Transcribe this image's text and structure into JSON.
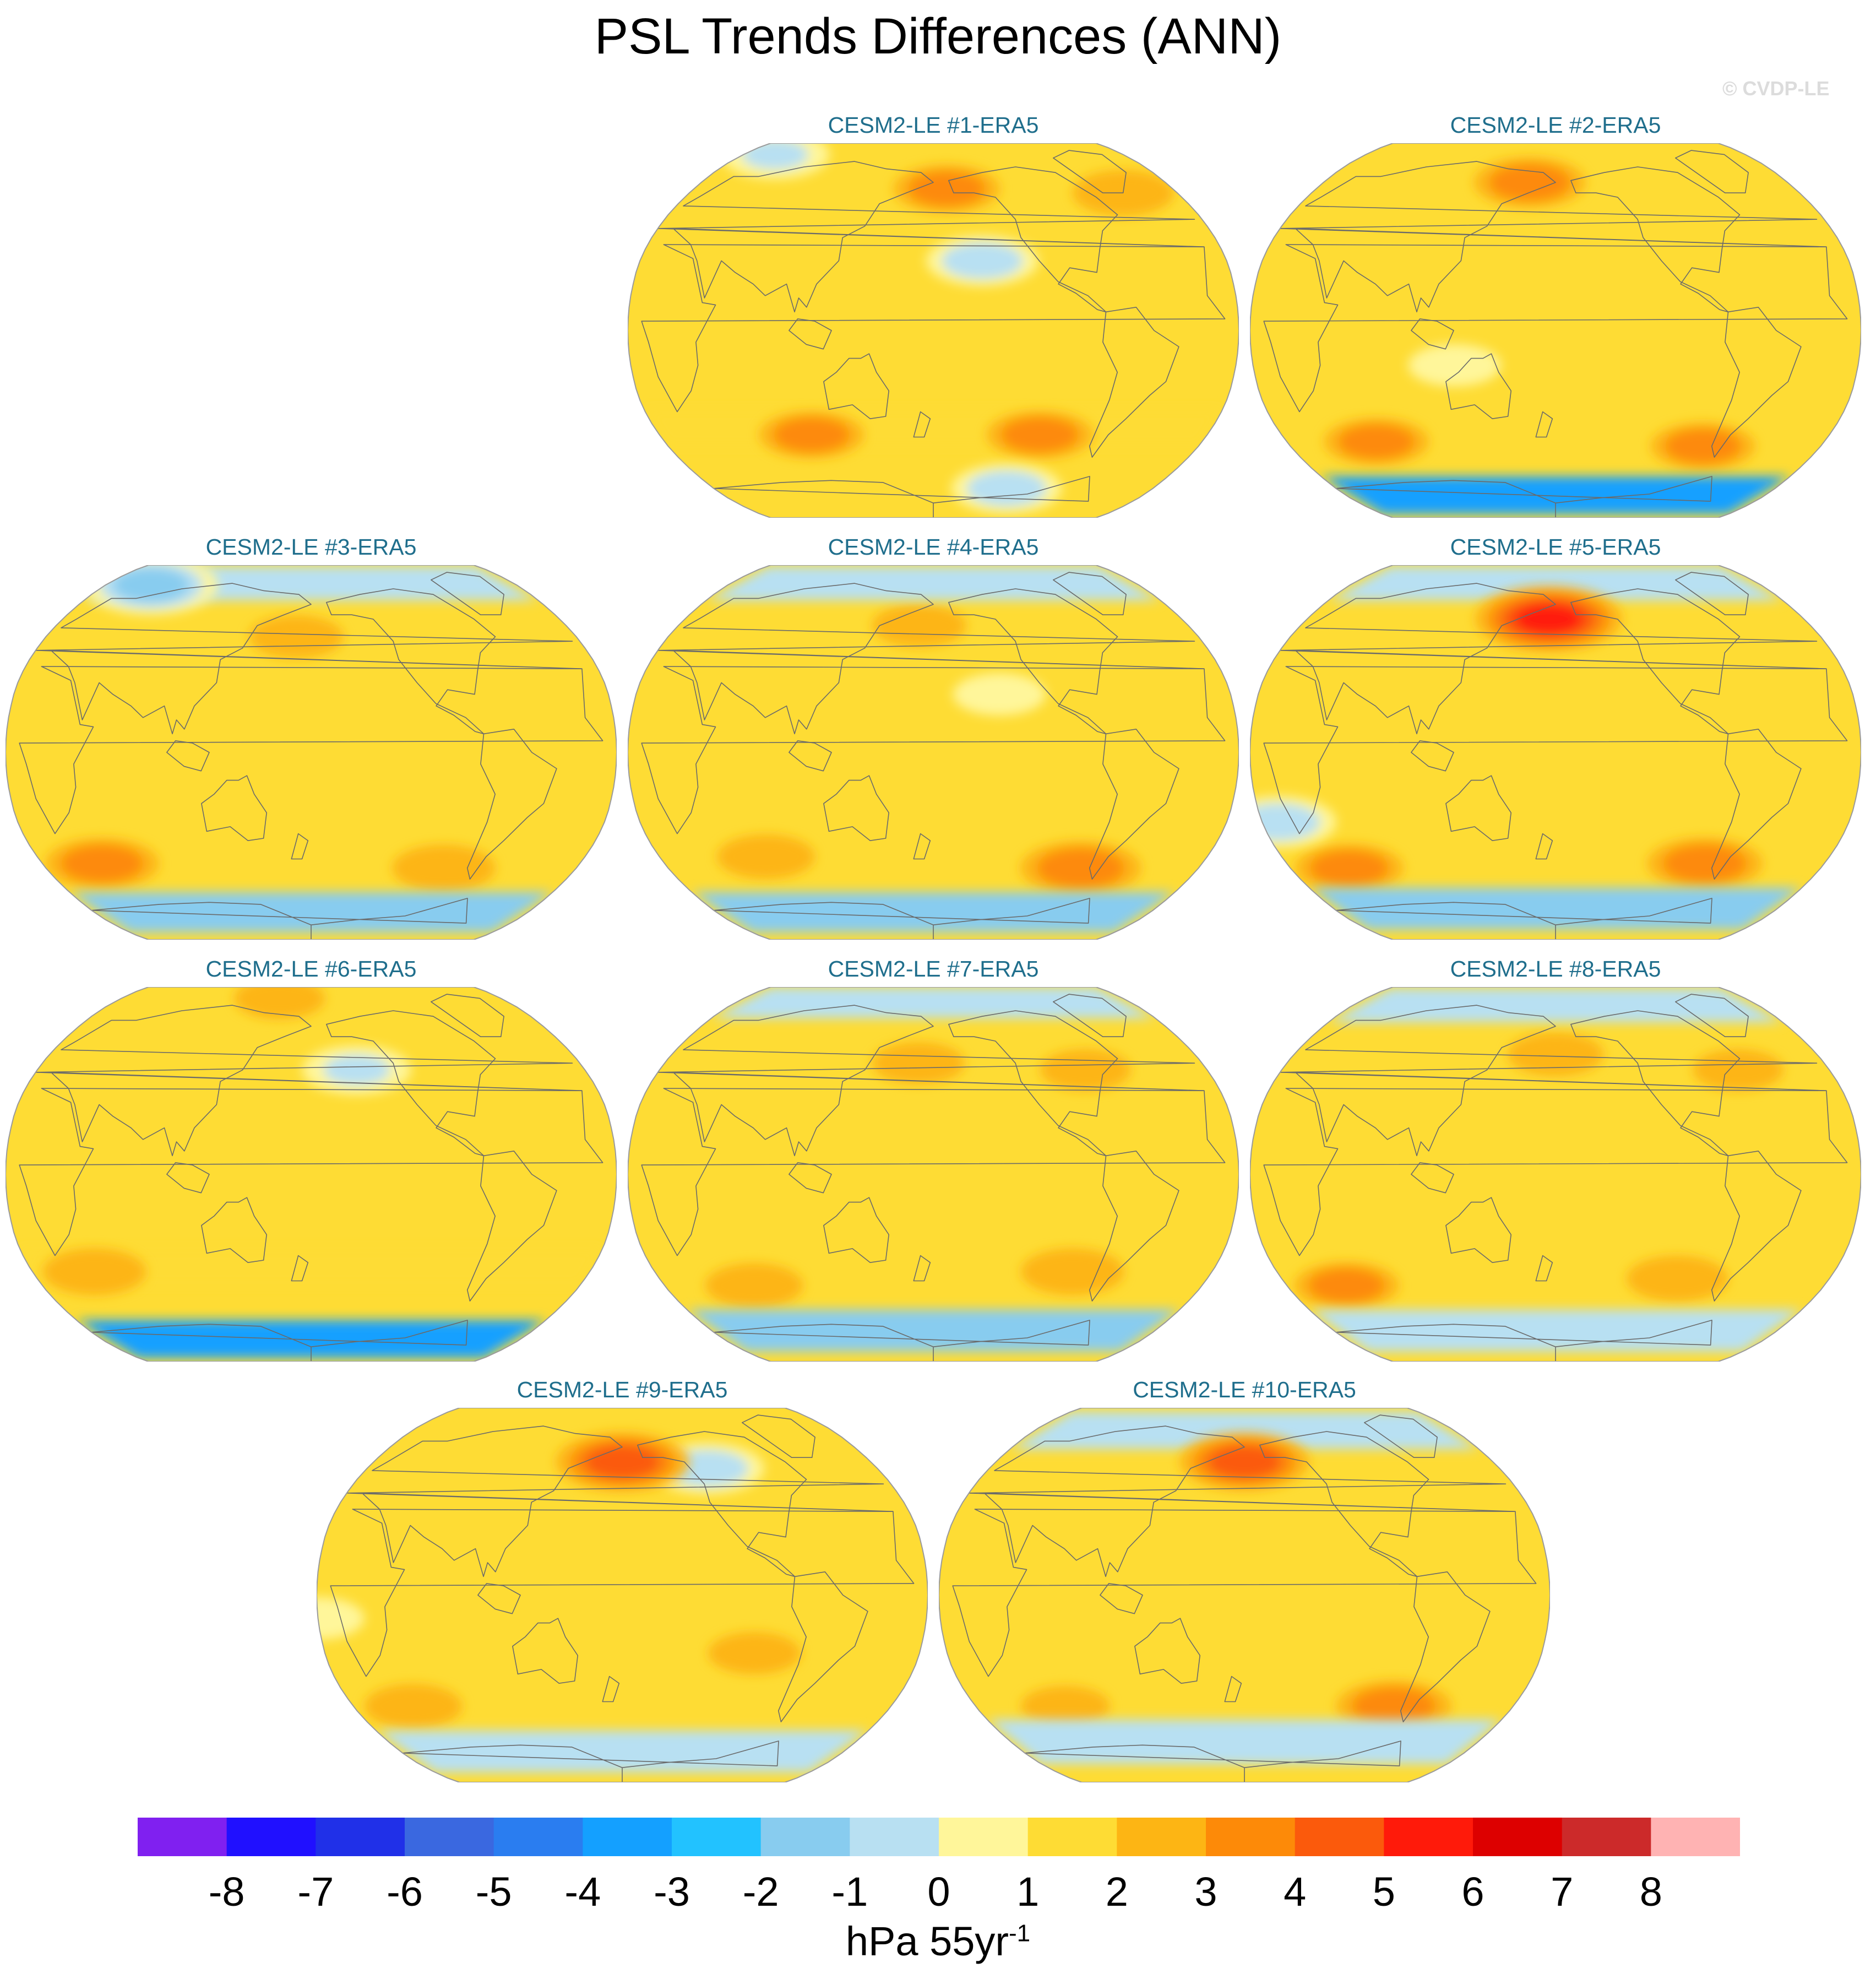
{
  "title": "PSL Trends Differences (ANN)",
  "watermark": "© CVDP-LE",
  "panels": [
    {
      "label": "CESM2-LE #1-ERA5",
      "features": [
        {
          "kind": "band",
          "lat": -42,
          "value": 1.6
        },
        {
          "kind": "blob",
          "lon": -110,
          "lat": -45,
          "value": 3.1
        },
        {
          "kind": "blob",
          "lon": 100,
          "lat": -45,
          "value": 3.0
        },
        {
          "kind": "blob",
          "lon": 190,
          "lat": 62,
          "value": 3.1
        },
        {
          "kind": "blob",
          "lon": -40,
          "lat": 60,
          "value": 2.8
        },
        {
          "kind": "blob",
          "lon": -150,
          "lat": 30,
          "value": -0.6
        },
        {
          "kind": "blob",
          "lon": -120,
          "lat": -70,
          "value": -0.5
        },
        {
          "kind": "blob",
          "lon": 30,
          "lat": 80,
          "value": -0.4
        }
      ]
    },
    {
      "label": "CESM2-LE #2-ERA5",
      "features": [
        {
          "kind": "band",
          "lat": -75,
          "value": -3.2
        },
        {
          "kind": "blob",
          "lon": 160,
          "lat": 65,
          "value": 3.4
        },
        {
          "kind": "blob",
          "lon": 60,
          "lat": -48,
          "value": 3.0
        },
        {
          "kind": "blob",
          "lon": -80,
          "lat": -50,
          "value": 3.0
        },
        {
          "kind": "blob",
          "lon": 120,
          "lat": -15,
          "value": 0.5
        }
      ]
    },
    {
      "label": "CESM2-LE #3-ERA5",
      "features": [
        {
          "kind": "band",
          "lat": -72,
          "value": -1.8
        },
        {
          "kind": "band",
          "lat": 78,
          "value": -0.9
        },
        {
          "kind": "blob",
          "lon": 40,
          "lat": -48,
          "value": 3.5
        },
        {
          "kind": "blob",
          "lon": -90,
          "lat": -50,
          "value": 2.9
        },
        {
          "kind": "blob",
          "lon": 170,
          "lat": 50,
          "value": 2.4
        },
        {
          "kind": "blob",
          "lon": 40,
          "lat": 75,
          "value": -1.8
        }
      ]
    },
    {
      "label": "CESM2-LE #4-ERA5",
      "features": [
        {
          "kind": "band",
          "lat": -72,
          "value": -1.8
        },
        {
          "kind": "band",
          "lat": 78,
          "value": -0.9
        },
        {
          "kind": "blob",
          "lon": -80,
          "lat": -50,
          "value": 3.9
        },
        {
          "kind": "blob",
          "lon": 70,
          "lat": -45,
          "value": 2.6
        },
        {
          "kind": "blob",
          "lon": 170,
          "lat": 55,
          "value": 2.4
        },
        {
          "kind": "blob",
          "lon": -140,
          "lat": 25,
          "value": 0.5
        }
      ]
    },
    {
      "label": "CESM2-LE #5-ERA5",
      "features": [
        {
          "kind": "band",
          "lat": -70,
          "value": -1.4
        },
        {
          "kind": "band",
          "lat": 78,
          "value": -0.9
        },
        {
          "kind": "blob",
          "lon": 175,
          "lat": 58,
          "value": 5.4
        },
        {
          "kind": "blob",
          "lon": -80,
          "lat": -48,
          "value": 3.6
        },
        {
          "kind": "blob",
          "lon": 40,
          "lat": -50,
          "value": 3.2
        },
        {
          "kind": "blob",
          "lon": 10,
          "lat": -30,
          "value": -0.8
        }
      ]
    },
    {
      "label": "CESM2-LE #6-ERA5",
      "features": [
        {
          "kind": "band",
          "lat": -75,
          "value": -3.4
        },
        {
          "kind": "band",
          "lat": -40,
          "value": 1.7
        },
        {
          "kind": "blob",
          "lon": 40,
          "lat": -42,
          "value": 2.9
        },
        {
          "kind": "blob",
          "lon": 150,
          "lat": 80,
          "value": 2.2
        },
        {
          "kind": "blob",
          "lon": -150,
          "lat": 45,
          "value": -0.4
        }
      ]
    },
    {
      "label": "CESM2-LE #7-ERA5",
      "features": [
        {
          "kind": "band",
          "lat": -70,
          "value": -1.6
        },
        {
          "kind": "band",
          "lat": 80,
          "value": -0.9
        },
        {
          "kind": "blob",
          "lon": -90,
          "lat": -42,
          "value": 2.9
        },
        {
          "kind": "blob",
          "lon": 60,
          "lat": -48,
          "value": 2.6
        },
        {
          "kind": "blob",
          "lon": 170,
          "lat": 48,
          "value": 2.3
        },
        {
          "kind": "blob",
          "lon": -80,
          "lat": 45,
          "value": 2.2
        }
      ]
    },
    {
      "label": "CESM2-LE #8-ERA5",
      "features": [
        {
          "kind": "band",
          "lat": -70,
          "value": -0.9
        },
        {
          "kind": "band",
          "lat": 78,
          "value": -0.9
        },
        {
          "kind": "blob",
          "lon": 40,
          "lat": -48,
          "value": 3.0
        },
        {
          "kind": "blob",
          "lon": -100,
          "lat": -45,
          "value": 2.8
        },
        {
          "kind": "blob",
          "lon": 180,
          "lat": 52,
          "value": 2.5
        },
        {
          "kind": "blob",
          "lon": -60,
          "lat": 45,
          "value": 2.2
        }
      ]
    },
    {
      "label": "CESM2-LE #9-ERA5",
      "features": [
        {
          "kind": "band",
          "lat": -70,
          "value": -0.9
        },
        {
          "kind": "blob",
          "lon": 180,
          "lat": 58,
          "value": 4.6
        },
        {
          "kind": "blob",
          "lon": 40,
          "lat": -48,
          "value": 2.6
        },
        {
          "kind": "blob",
          "lon": -100,
          "lat": -25,
          "value": 2.3
        },
        {
          "kind": "blob",
          "lon": -120,
          "lat": 55,
          "value": -0.7
        },
        {
          "kind": "blob",
          "lon": 0,
          "lat": -10,
          "value": 0.5
        }
      ]
    },
    {
      "label": "CESM2-LE #10-ERA5",
      "features": [
        {
          "kind": "band",
          "lat": -65,
          "value": -1.0
        },
        {
          "kind": "band",
          "lat": 75,
          "value": -0.9
        },
        {
          "kind": "blob",
          "lon": 180,
          "lat": 58,
          "value": 4.4
        },
        {
          "kind": "blob",
          "lon": -80,
          "lat": -48,
          "value": 3.6
        },
        {
          "kind": "blob",
          "lon": 60,
          "lat": -48,
          "value": 2.1
        }
      ]
    }
  ],
  "chart_data": {
    "type": "heatmap",
    "title": "PSL Trends Differences (ANN)",
    "projection": "Robinson, centered on 180°",
    "levels": [
      -8,
      -7,
      -6,
      -5,
      -4,
      -3,
      -2,
      -1,
      0,
      1,
      2,
      3,
      4,
      5,
      6,
      7,
      8
    ],
    "colorbar": {
      "tick_labels": [
        "-8",
        "-7",
        "-6",
        "-5",
        "-4",
        "-3",
        "-2",
        "-1",
        "0",
        "1",
        "2",
        "3",
        "4",
        "5",
        "6",
        "7",
        "8"
      ],
      "colors": [
        "#8020f0",
        "#2010ff",
        "#2030e8",
        "#3a68e0",
        "#2a7df0",
        "#14a0ff",
        "#22c2ff",
        "#88ccef",
        "#b8e0f2",
        "#fff69a",
        "#fedc34",
        "#fdb514",
        "#fd8a08",
        "#fb5a0c",
        "#ff1a0a",
        "#dd0000",
        "#cc2a2a",
        "#ffb3b3"
      ],
      "unit": "hPa 55yr",
      "unit_exponent": "-1"
    }
  }
}
